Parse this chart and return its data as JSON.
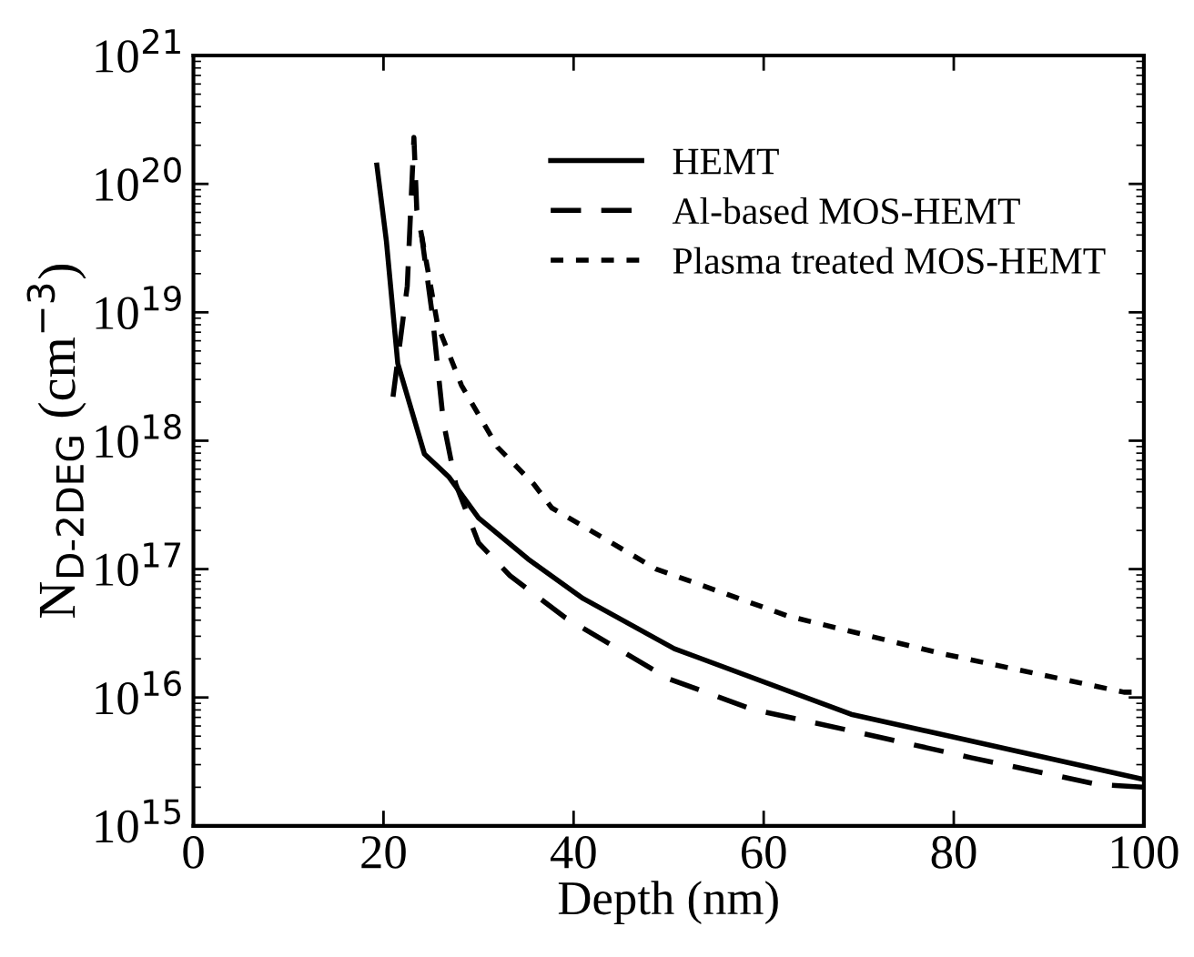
{
  "chart_data": {
    "type": "line",
    "xlabel": "Depth (nm)",
    "ylabel": "N$_{D-2DEG}$ (cm$^{−3}$)",
    "log": "y",
    "grid": false,
    "legend": "top right",
    "xlim": [
      0,
      100
    ],
    "xticks": [
      0,
      20,
      40,
      60,
      80,
      100
    ],
    "ylim": [
      1000000000000000.0,
      1e+21
    ],
    "yticks": [
      {
        "value": 1000000000000000.0,
        "label": "10$^{15}$"
      },
      {
        "value": 1e+16,
        "label": "10$^{16}$"
      },
      {
        "value": 1e+17,
        "label": "10$^{17}$"
      },
      {
        "value": 1e+18,
        "label": "10$^{18}$"
      },
      {
        "value": 1e+19,
        "label": "10$^{19}$"
      },
      {
        "value": 1e+20,
        "label": "10$^{20}$"
      },
      {
        "value": 1e+21,
        "label": "10$^{21}$"
      }
    ],
    "series": [
      {
        "name": "HEMT",
        "color": "#000000",
        "line_style": "solid",
        "x": [
          19.3,
          20.3,
          21.5,
          24.3,
          26.9,
          30,
          35.2,
          41,
          50.6,
          69.2,
          100
        ],
        "values": [
          1.4e+20,
          3.6e+19,
          4e+18,
          7.9e+17,
          5.2e+17,
          2.5e+17,
          1.2e+17,
          5.9e+16,
          2.4e+16,
          7400000000000000.0,
          2300000000000000.0
        ]
      },
      {
        "name": "Al-based MOS-HEMT",
        "color": "#000000",
        "line_style": "dashed",
        "x": [
          21,
          22.5,
          23.2,
          23.5,
          24,
          25.1,
          26.3,
          27.6,
          30,
          33.3,
          39.1,
          50,
          58.8,
          69.2,
          81.8,
          95.2,
          100
        ],
        "values": [
          2.2e+18,
          1.6e+19,
          2.3e+20,
          6.3e+19,
          4e+19,
          1e+19,
          1.4e+18,
          4.6e+17,
          1.6e+17,
          8.9e+16,
          4.2e+16,
          1.4e+16,
          8100000000000000.0,
          5500000000000000.0,
          3400000000000000.0,
          2100000000000000.0,
          2000000000000000.0
        ]
      },
      {
        "name": "Plasma treated MOS-HEMT",
        "color": "#000000",
        "line_style": "dotted",
        "x": [
          24,
          25.7,
          28.2,
          32,
          35.8,
          37.7,
          48.7,
          62.6,
          78.7,
          97.9,
          100
        ],
        "values": [
          4e+19,
          7.9e+18,
          2.7e+18,
          8.9e+17,
          4.6e+17,
          3e+17,
          1e+17,
          4.3e+16,
          2.2e+16,
          1.1e+16,
          1.1e+16
        ]
      }
    ]
  }
}
